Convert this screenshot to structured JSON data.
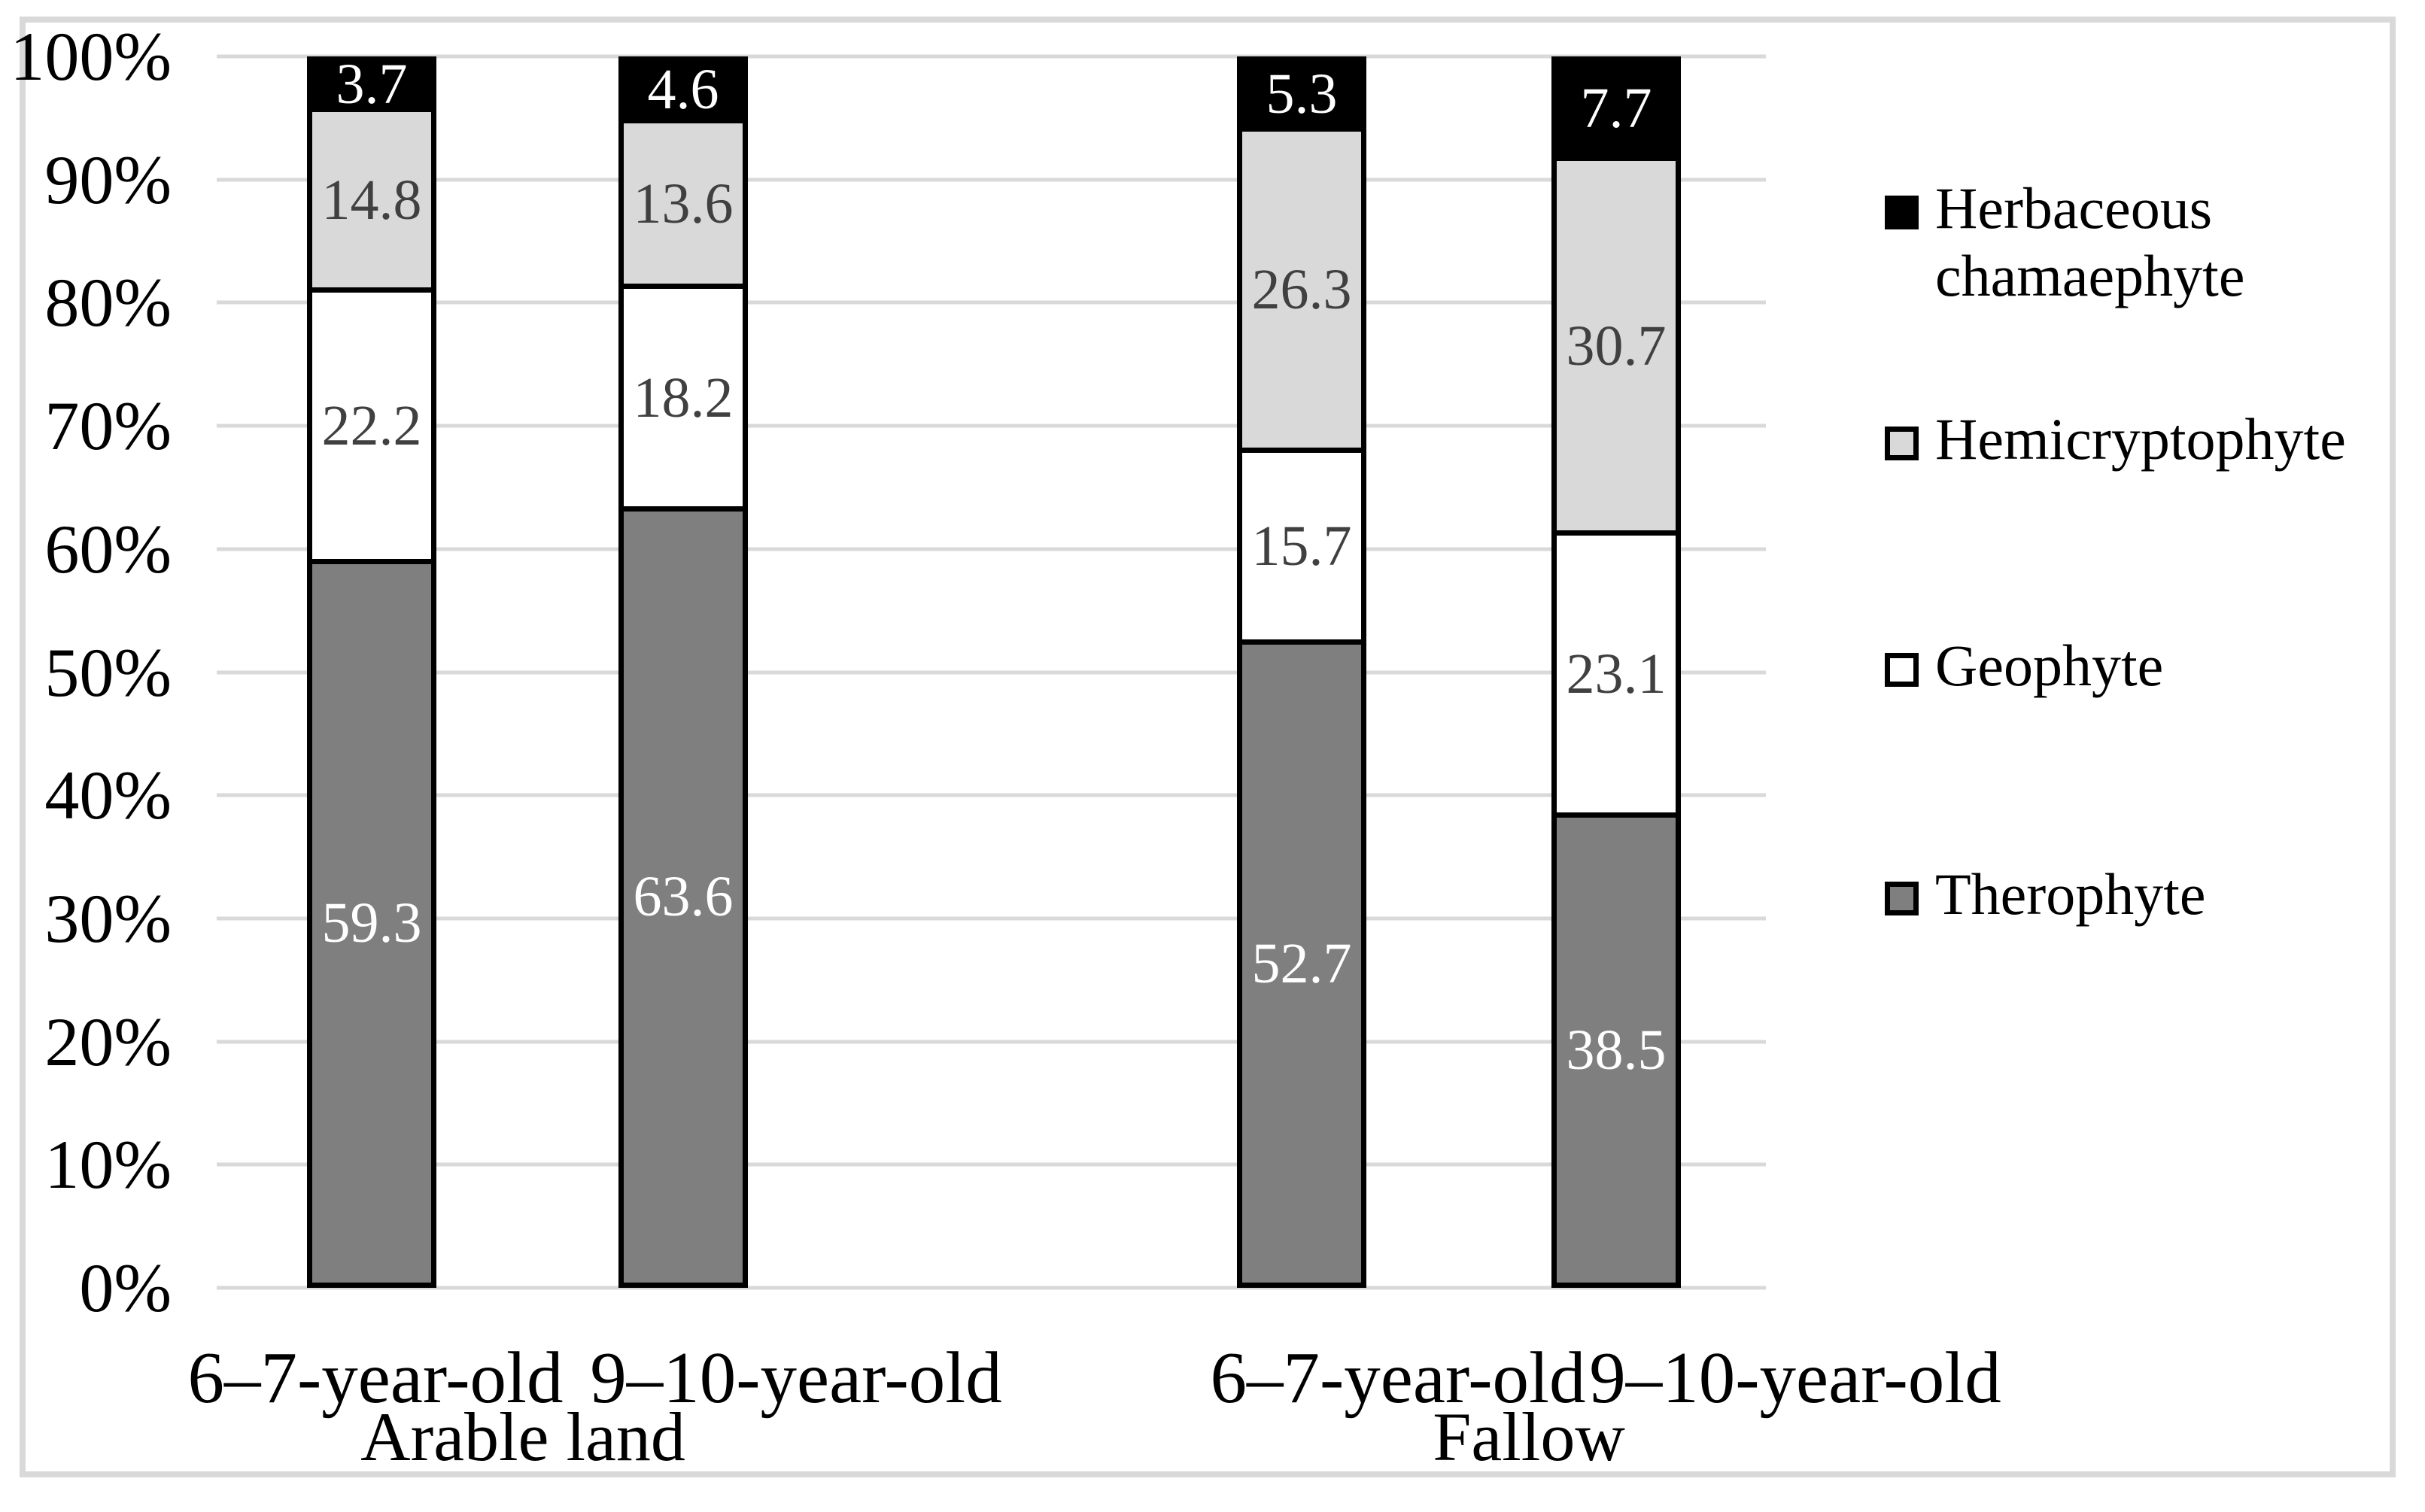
{
  "chart_data": {
    "type": "bar",
    "variant": "100-percent-stacked-column",
    "title": "",
    "xlabel": "",
    "ylabel": "",
    "y_axis": {
      "min": 0,
      "max": 100,
      "gridlines": true,
      "ticks": [
        "0%",
        "10%",
        "20%",
        "30%",
        "40%",
        "50%",
        "60%",
        "70%",
        "80%",
        "90%",
        "100%"
      ]
    },
    "x_groups": [
      {
        "label": "Arable land",
        "categories": [
          "6–7-year-old",
          "9–10-year-old"
        ]
      },
      {
        "label": "Fallow",
        "categories": [
          "6–7-year-old",
          "9–10-year-old"
        ]
      }
    ],
    "categories_flat": [
      "6–7-year-old",
      "9–10-year-old",
      "6–7-year-old",
      "9–10-year-old"
    ],
    "stack_order_bottom_to_top": [
      "Therophyte",
      "Geophyte",
      "Hemicryptophyte",
      "Herbaceous chamaephyte"
    ],
    "series": [
      {
        "name": "Therophyte",
        "color": "#7f7f7f",
        "label_color": "#ffffff",
        "values": [
          59.3,
          63.6,
          52.7,
          38.5
        ]
      },
      {
        "name": "Geophyte",
        "color": "#ffffff",
        "label_color": "#404040",
        "values": [
          22.2,
          18.2,
          15.7,
          23.1
        ]
      },
      {
        "name": "Hemicryptophyte",
        "color": "#d9d9d9",
        "label_color": "#404040",
        "values": [
          14.8,
          13.6,
          26.3,
          30.7
        ]
      },
      {
        "name": "Herbaceous chamaephyte",
        "color": "#000000",
        "label_color": "#ffffff",
        "values": [
          3.7,
          4.6,
          5.3,
          7.7
        ]
      }
    ],
    "legend": {
      "position": "right",
      "entries": [
        {
          "label": "Herbaceous chamaephyte",
          "color": "#000000"
        },
        {
          "label": "Hemicryptophyte",
          "color": "#d9d9d9"
        },
        {
          "label": "Geophyte",
          "color": "#ffffff"
        },
        {
          "label": "Therophyte",
          "color": "#7f7f7f"
        }
      ]
    },
    "colors": {
      "gridline": "#d9d9d9",
      "figure_border": "#d9d9d9",
      "bar_outline": "#000000",
      "axis_text": "#000000"
    }
  }
}
